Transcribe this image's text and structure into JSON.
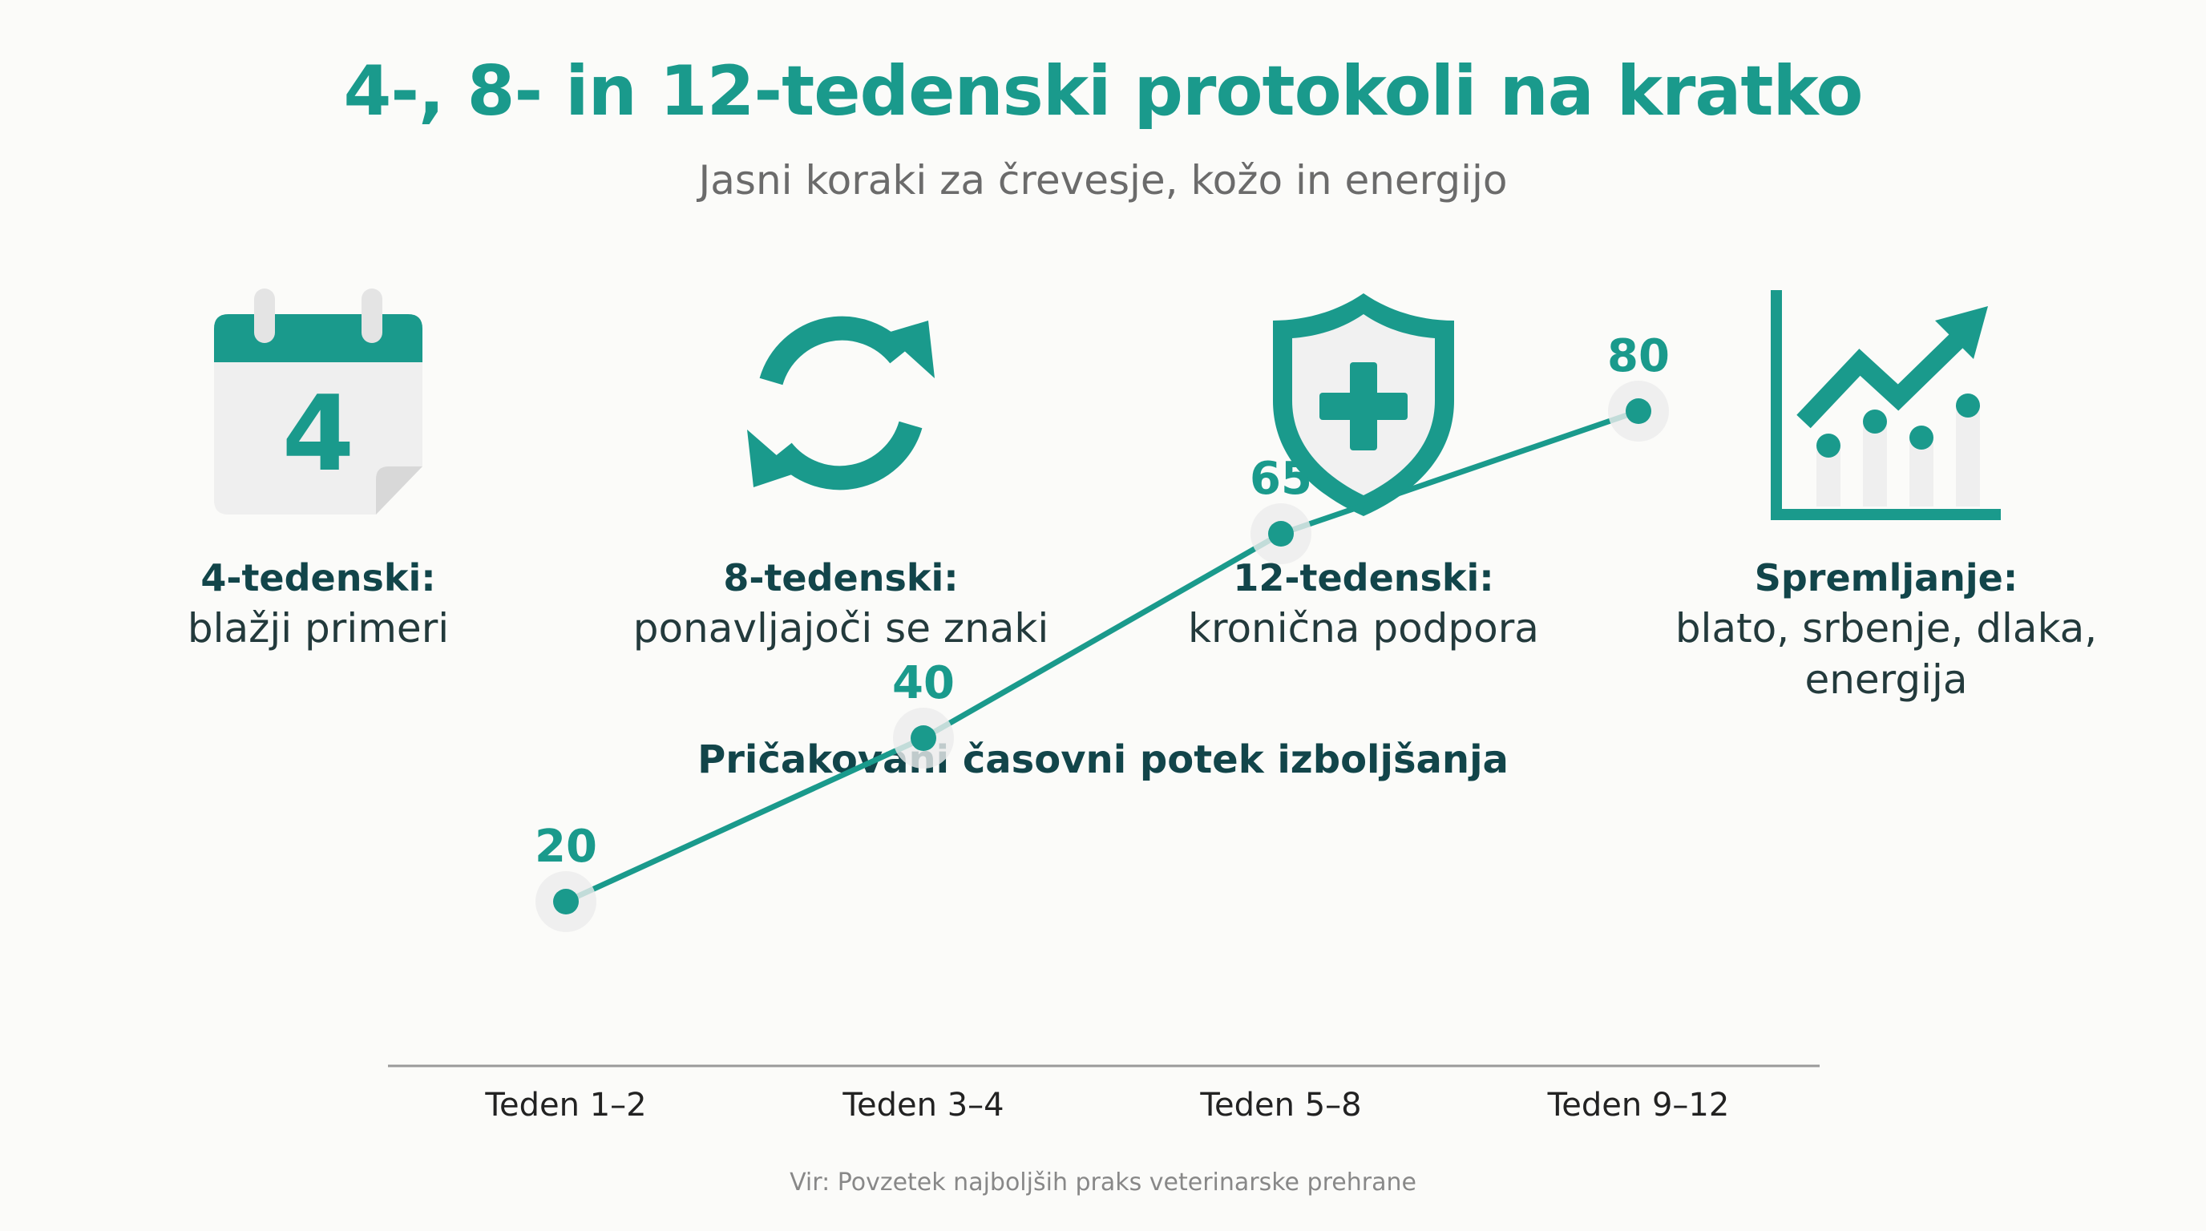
{
  "header": {
    "title": "4-, 8- in 12-tedenski protokoli na kratko",
    "subtitle": "Jasni koraki za črevesje, kožo in energijo"
  },
  "features": [
    {
      "icon": "calendar-icon",
      "icon_text": "4",
      "label": "4-tedenski:",
      "desc": "blažji primeri"
    },
    {
      "icon": "refresh-cycle-icon",
      "label": "8-tedenski:",
      "desc": "ponavljajoči se znaki"
    },
    {
      "icon": "shield-cross-icon",
      "label": "12-tedenski:",
      "desc": "kronična podpora"
    },
    {
      "icon": "trending-chart-icon",
      "label": "Spremljanje:",
      "desc": "blato, srbenje, dlaka, energija"
    }
  ],
  "colors": {
    "accent": "#1a9a8c",
    "dark_text": "#12454a",
    "muted_text": "#6b6b6b",
    "axis": "#9a9a9a"
  },
  "chart_data": {
    "type": "line",
    "title": "Pričakovani časovni potek izboljšanja",
    "categories": [
      "Teden 1–2",
      "Teden 3–4",
      "Teden 5–8",
      "Teden 9–12"
    ],
    "values": [
      20,
      40,
      65,
      80
    ],
    "data_labels": [
      "20",
      "40",
      "65",
      "80"
    ],
    "xlabel": "",
    "ylabel": "",
    "ylim": [
      0,
      100
    ],
    "grid": false
  },
  "footer": {
    "source": "Vir: Povzetek najboljših praks veterinarske prehrane"
  }
}
